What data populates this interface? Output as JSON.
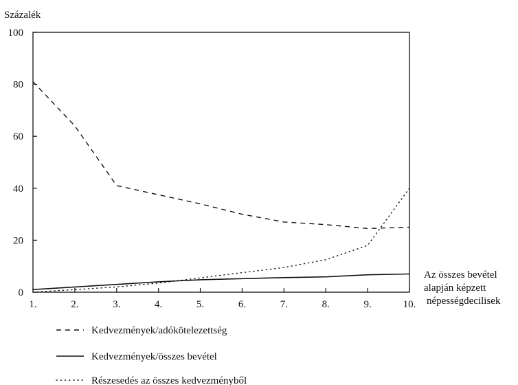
{
  "chart_data": {
    "type": "line",
    "ylabel": "Százalék",
    "xlabel_lines": [
      "Az összes bevétel",
      "alapján képzett",
      "népességdecilisek"
    ],
    "ylim": [
      0,
      100
    ],
    "yticks": [
      0,
      20,
      40,
      60,
      80,
      100
    ],
    "categories": [
      "1.",
      "2.",
      "3.",
      "4.",
      "5.",
      "6.",
      "7.",
      "8.",
      "9.",
      "10."
    ],
    "grid": false,
    "legend_position": "bottom",
    "series": [
      {
        "name": "Kedvezmények/adókötelezettség",
        "style": "dashed",
        "values": [
          81,
          64,
          41,
          37.5,
          34,
          30,
          27,
          26,
          24.5,
          25
        ]
      },
      {
        "name": "Kedvezmények/összes bevétel",
        "style": "solid",
        "values": [
          1,
          2,
          3,
          4,
          4.8,
          5.2,
          5.6,
          5.9,
          6.7,
          7
        ]
      },
      {
        "name": "Részesedés az összes kedvezményből",
        "style": "dotted",
        "values": [
          0,
          1,
          2,
          3.5,
          5.5,
          7.5,
          9.5,
          12.5,
          18,
          40
        ]
      }
    ]
  }
}
